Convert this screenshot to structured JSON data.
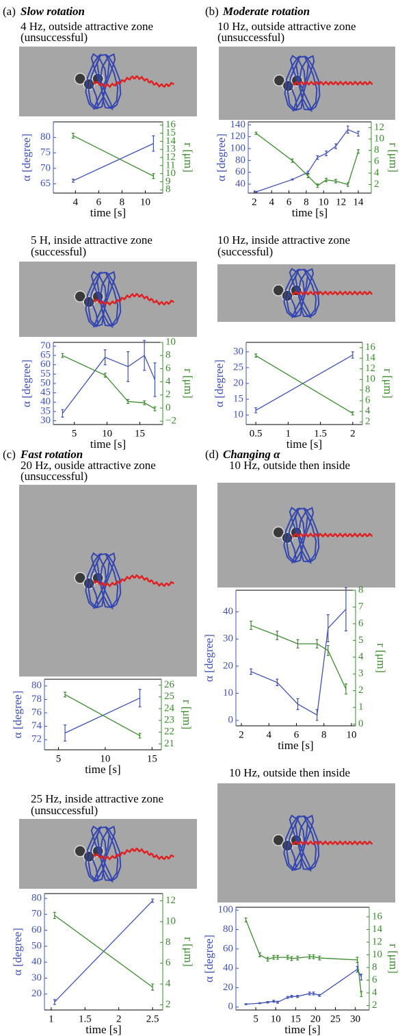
{
  "sections": [
    {
      "label": "(a)",
      "title": "Slow rotation"
    },
    {
      "label": "(b)",
      "title": "Moderate rotation"
    },
    {
      "label": "(c)",
      "title": "Fast rotation"
    },
    {
      "label": "(d)",
      "title": "Changing α"
    }
  ],
  "chart_data": [
    {
      "type": "line",
      "title": "4 Hz, outside attractive zone",
      "subtitle": "(unsuccessful)",
      "x_label": "time [s]",
      "y_label": "α [degree]",
      "y2_label": "r [μm]",
      "x": [
        3.8,
        10.7
      ],
      "xlim": [
        2.1,
        11.5
      ],
      "xticks": [
        4,
        6,
        8,
        10
      ],
      "ylim": [
        62,
        85
      ],
      "yticks": [
        65,
        70,
        75,
        80
      ],
      "y2lim": [
        7.6,
        16.4
      ],
      "y2ticks": [
        8,
        9,
        10,
        11,
        12,
        13,
        14,
        15,
        16
      ],
      "series": [
        {
          "axis": "y",
          "color": "#3f51b5",
          "values": [
            66,
            78
          ],
          "errors": [
            0.5,
            2.5
          ]
        },
        {
          "axis": "y2",
          "color": "#3a8a2c",
          "values": [
            14.7,
            9.7
          ],
          "errors": [
            0.3,
            0.3
          ]
        }
      ]
    },
    {
      "type": "line",
      "title": "10 Hz, outside attractive zone",
      "subtitle": "(unsuccessful)",
      "x_label": "time [s]",
      "y_label": "α [degree]",
      "y2_label": "r [μm]",
      "x": [
        2.2,
        6.4,
        8.2,
        9.3,
        10.3,
        11.4,
        12.8,
        14
      ],
      "xlim": [
        1.3,
        15.5
      ],
      "xticks": [
        2,
        4,
        6,
        8,
        10,
        12,
        14
      ],
      "ylim": [
        25,
        145
      ],
      "yticks": [
        40,
        60,
        80,
        100,
        120,
        140
      ],
      "y2lim": [
        0.5,
        13
      ],
      "y2ticks": [
        2,
        4,
        6,
        8,
        10,
        12
      ],
      "series": [
        {
          "axis": "y",
          "color": "#3f51b5",
          "values": [
            27,
            48,
            60,
            85,
            92,
            104,
            132,
            125
          ],
          "errors": [
            1,
            1,
            2,
            3,
            4,
            4,
            6,
            4
          ]
        },
        {
          "axis": "y2",
          "color": "#3a8a2c",
          "values": [
            11,
            6.2,
            3.5,
            1.8,
            2.8,
            2.6,
            2,
            7.8
          ],
          "errors": [
            0.2,
            0.3,
            0.3,
            0.3,
            0.3,
            0.3,
            0.3,
            0.3
          ]
        }
      ]
    },
    {
      "type": "line",
      "title": "5 H, inside attractive zone",
      "subtitle": "(successful)",
      "x_label": "time [s]",
      "y_label": "α [degree]",
      "y2_label": "r [μm]",
      "x": [
        3.2,
        9.7,
        13.2,
        15.7,
        17.3
      ],
      "xlim": [
        1.8,
        18.5
      ],
      "xticks": [
        5,
        10,
        15
      ],
      "ylim": [
        28,
        72
      ],
      "yticks": [
        30,
        35,
        40,
        45,
        50,
        55,
        60,
        65,
        70
      ],
      "y2lim": [
        -2.5,
        10
      ],
      "y2ticks": [
        {
          "value": -2,
          "label": "−2"
        },
        0,
        2,
        4,
        6,
        8,
        10
      ],
      "series": [
        {
          "axis": "y",
          "color": "#3f51b5",
          "values": [
            34,
            64,
            59,
            65,
            52
          ],
          "errors": [
            2,
            4,
            8,
            8,
            9
          ]
        },
        {
          "axis": "y2",
          "color": "#3a8a2c",
          "values": [
            8,
            5,
            1,
            0.8,
            -0.1
          ],
          "errors": [
            0.3,
            0.3,
            0.3,
            0.3,
            0.3
          ]
        }
      ]
    },
    {
      "type": "line",
      "title": "10 Hz, inside attractive zone",
      "subtitle": "(successful)",
      "x_label": "time [s]",
      "y_label": "α [degree]",
      "y2_label": "r [μm]",
      "x": [
        0.5,
        2
      ],
      "xlim": [
        0.35,
        2.15
      ],
      "xticks": [
        0.5,
        1,
        1.5,
        2
      ],
      "ylim": [
        7,
        33
      ],
      "yticks": [
        10,
        15,
        20,
        25,
        30
      ],
      "y2lim": [
        1.5,
        17
      ],
      "y2ticks": [
        2,
        4,
        6,
        8,
        10,
        12,
        14,
        16
      ],
      "series": [
        {
          "axis": "y",
          "color": "#3f51b5",
          "values": [
            11.5,
            29
          ],
          "errors": [
            0.8,
            1
          ]
        },
        {
          "axis": "y2",
          "color": "#3a8a2c",
          "values": [
            14.5,
            3.6
          ],
          "errors": [
            0.3,
            0.3
          ]
        }
      ]
    },
    {
      "type": "line",
      "title": "20 Hz, ouside attractive zone",
      "subtitle": "(unsuccessful)",
      "x_label": "time [s]",
      "y_label": "α [degree]",
      "y2_label": "r [μm]",
      "x": [
        5.7,
        13.7
      ],
      "xlim": [
        3.5,
        16
      ],
      "xticks": [
        5,
        10,
        15
      ],
      "ylim": [
        70.5,
        81
      ],
      "yticks": [
        72,
        74,
        76,
        78,
        80
      ],
      "y2lim": [
        20.5,
        26.5
      ],
      "y2ticks": [
        21,
        22,
        23,
        24,
        25,
        26
      ],
      "series": [
        {
          "axis": "y",
          "color": "#3f51b5",
          "values": [
            73,
            78.2
          ],
          "errors": [
            1.2,
            1.3
          ]
        },
        {
          "axis": "y2",
          "color": "#3a8a2c",
          "values": [
            25.2,
            21.7
          ],
          "errors": [
            0.2,
            0.2
          ]
        }
      ]
    },
    {
      "type": "line",
      "title": "10 Hz, outside then inside",
      "x_label": "time [s]",
      "y_label": "α [degree]",
      "y2_label": "r [μm]",
      "x": [
        2.7,
        4.6,
        6.1,
        7.5,
        8.3,
        9.6
      ],
      "xlim": [
        1.6,
        10.3
      ],
      "xticks": [
        2,
        4,
        6,
        8,
        10
      ],
      "ylim": [
        -2,
        48
      ],
      "yticks": [
        0,
        10,
        20,
        30,
        40
      ],
      "y2lim": [
        -0.1,
        8
      ],
      "y2ticks": [
        0,
        1,
        2,
        3,
        4,
        5,
        6,
        7,
        8
      ],
      "series": [
        {
          "axis": "y",
          "color": "#3f51b5",
          "values": [
            18,
            14,
            6,
            2,
            34,
            41
          ],
          "errors": [
            1,
            1.2,
            2,
            2,
            5,
            8
          ]
        },
        {
          "axis": "y2",
          "color": "#3a8a2c",
          "values": [
            5.9,
            5.3,
            4.8,
            4.8,
            4.4,
            2.1
          ],
          "errors": [
            0.25,
            0.25,
            0.25,
            0.25,
            0.3,
            0.3
          ]
        }
      ]
    },
    {
      "type": "line",
      "title": "25 Hz, inside attractive zone",
      "subtitle": "(unsuccessful)",
      "x_label": "time [s]",
      "y_label": "α [degree]",
      "y2_label": "r [μm]",
      "x": [
        1.05,
        2.5
      ],
      "xlim": [
        0.9,
        2.65
      ],
      "xticks": [
        1,
        1.5,
        2,
        2.5
      ],
      "ylim": [
        10,
        83
      ],
      "yticks": [
        20,
        30,
        40,
        50,
        60,
        70,
        80
      ],
      "y2lim": [
        1.5,
        12.7
      ],
      "y2ticks": [
        2,
        4,
        6,
        8,
        10,
        12
      ],
      "series": [
        {
          "axis": "y",
          "color": "#3f51b5",
          "values": [
            15,
            78.5
          ],
          "errors": [
            1.5,
            1
          ]
        },
        {
          "axis": "y2",
          "color": "#3a8a2c",
          "values": [
            10.6,
            3.7
          ],
          "errors": [
            0.3,
            0.3
          ]
        }
      ]
    },
    {
      "type": "line",
      "title": "10 Hz, outside then inside",
      "x_label": "time [s]",
      "y_label": "α [degree]",
      "y2_label": "r [μm]",
      "x": [
        2.5,
        6,
        8,
        9.5,
        10.5,
        13,
        14,
        15.5,
        18.5,
        19.5,
        21,
        30.5,
        31.5
      ],
      "xlim": [
        0,
        33.5
      ],
      "xticks": [
        5,
        10,
        15,
        20,
        25,
        30
      ],
      "ylim": [
        -3,
        103
      ],
      "yticks": [
        0,
        20,
        40,
        60,
        80,
        100
      ],
      "y2lim": [
        1.3,
        17.5
      ],
      "y2ticks": [
        2,
        4,
        6,
        8,
        10,
        12,
        14,
        16
      ],
      "series": [
        {
          "axis": "y",
          "color": "#3f51b5",
          "values": [
            3,
            4,
            5,
            6,
            5,
            10,
            11,
            11,
            14,
            14,
            12,
            39,
            31
          ],
          "errors": [
            0.5,
            0.5,
            0.8,
            1,
            1,
            1,
            1,
            1,
            1.5,
            1.5,
            1,
            3,
            3
          ]
        },
        {
          "axis": "y2",
          "color": "#3a8a2c",
          "values": [
            15.5,
            10,
            9.3,
            9.6,
            9.6,
            9.6,
            9.4,
            9.5,
            9.7,
            9.7,
            9.5,
            9.2,
            3.8
          ],
          "errors": [
            0.3,
            0.3,
            0.3,
            0.3,
            0.3,
            0.3,
            0.3,
            0.3,
            0.3,
            0.3,
            0.3,
            0.4,
            0.4
          ]
        }
      ]
    }
  ]
}
